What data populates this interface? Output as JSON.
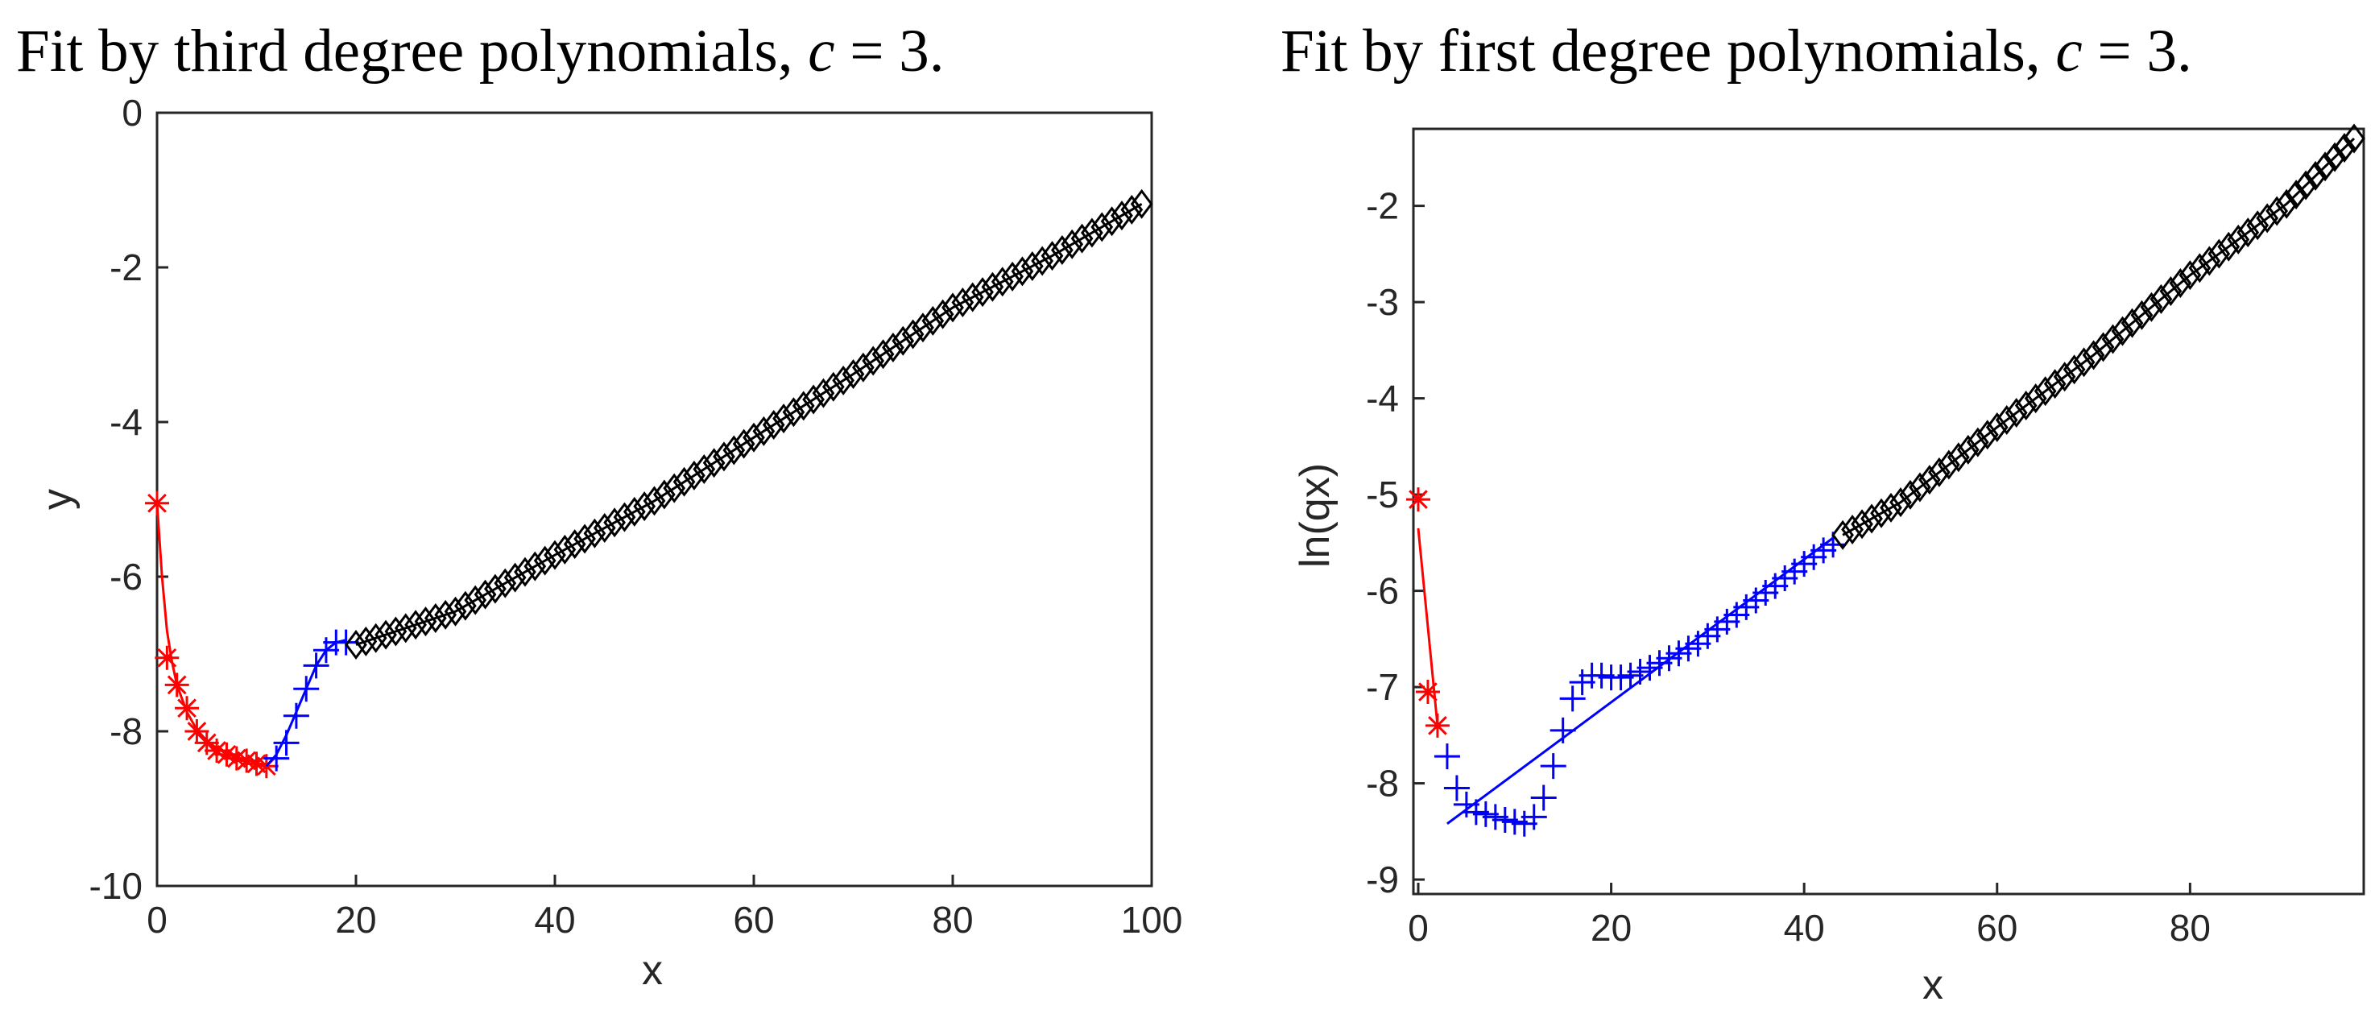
{
  "chart_data": [
    {
      "type": "scatter",
      "title": "Fit by third degree polynomials, c = 3.",
      "title_parts": {
        "prefix": "Fit by third degree polynomials, ",
        "var": "c",
        "suffix": " = 3."
      },
      "xlabel": "x",
      "ylabel": "y",
      "xlim": [
        0,
        100
      ],
      "ylim": [
        -10,
        0
      ],
      "xticks": [
        0,
        20,
        40,
        60,
        80,
        100
      ],
      "yticks": [
        0,
        -2,
        -4,
        -6,
        -8,
        -10
      ],
      "grid": false,
      "series": [
        {
          "marker": "asterisk",
          "color": "#ff0000",
          "points": [
            [
              0,
              -5.05
            ],
            [
              1,
              -7.05
            ],
            [
              2,
              -7.4
            ],
            [
              3,
              -7.7
            ],
            [
              4,
              -8.0
            ],
            [
              5,
              -8.15
            ],
            [
              6,
              -8.25
            ],
            [
              7,
              -8.3
            ],
            [
              8,
              -8.35
            ],
            [
              9,
              -8.38
            ],
            [
              10,
              -8.42
            ],
            [
              11,
              -8.45
            ]
          ],
          "fit": [
            [
              0,
              -5.05
            ],
            [
              0.5,
              -6.0
            ],
            [
              1,
              -6.7
            ],
            [
              1.5,
              -7.1
            ],
            [
              2,
              -7.4
            ],
            [
              3,
              -7.75
            ],
            [
              4,
              -7.98
            ],
            [
              5,
              -8.12
            ],
            [
              6,
              -8.22
            ],
            [
              7,
              -8.29
            ],
            [
              8,
              -8.34
            ],
            [
              9,
              -8.37
            ],
            [
              10,
              -8.41
            ],
            [
              11,
              -8.45
            ]
          ]
        },
        {
          "marker": "plus",
          "color": "#0000ff",
          "points": [
            [
              12,
              -8.35
            ],
            [
              13,
              -8.15
            ],
            [
              14,
              -7.8
            ],
            [
              15,
              -7.45
            ],
            [
              16,
              -7.15
            ],
            [
              17,
              -6.95
            ],
            [
              18,
              -6.85
            ],
            [
              19,
              -6.85
            ]
          ],
          "fit": [
            [
              11,
              -8.45
            ],
            [
              12,
              -8.3
            ],
            [
              13,
              -8.05
            ],
            [
              14,
              -7.75
            ],
            [
              15,
              -7.45
            ],
            [
              16,
              -7.15
            ],
            [
              17,
              -6.95
            ],
            [
              18,
              -6.85
            ],
            [
              19,
              -6.82
            ]
          ]
        },
        {
          "marker": "diamond",
          "color": "#000000",
          "x_range": [
            20,
            99
          ],
          "anchors": [
            [
              20,
              -6.88
            ],
            [
              30,
              -6.45
            ],
            [
              40,
              -5.72
            ],
            [
              50,
              -5.02
            ],
            [
              60,
              -4.2
            ],
            [
              70,
              -3.38
            ],
            [
              80,
              -2.52
            ],
            [
              90,
              -1.85
            ],
            [
              99,
              -1.18
            ]
          ],
          "fit": [
            [
              20,
              -6.88
            ],
            [
              30,
              -6.45
            ],
            [
              40,
              -5.72
            ],
            [
              50,
              -5.02
            ],
            [
              60,
              -4.2
            ],
            [
              70,
              -3.38
            ],
            [
              80,
              -2.52
            ],
            [
              90,
              -1.85
            ],
            [
              99,
              -1.18
            ]
          ]
        }
      ]
    },
    {
      "type": "scatter",
      "title": "Fit by first degree polynomials, c = 3.",
      "title_parts": {
        "prefix": "Fit by first degree polynomials, ",
        "var": "c",
        "suffix": " = 3."
      },
      "xlabel": "x",
      "ylabel": "ln(qx)",
      "xlim": [
        -0.5,
        98
      ],
      "ylim": [
        -9.15,
        -1.2
      ],
      "xticks": [
        0,
        20,
        40,
        60,
        80
      ],
      "yticks": [
        -2,
        -3,
        -4,
        -5,
        -6,
        -7,
        -8,
        -9
      ],
      "grid": false,
      "series": [
        {
          "marker": "asterisk",
          "color": "#ff0000",
          "points": [
            [
              0,
              -5.05
            ],
            [
              1,
              -7.05
            ],
            [
              2,
              -7.4
            ]
          ],
          "fit": [
            [
              0,
              -5.35
            ],
            [
              2,
              -7.4
            ]
          ]
        },
        {
          "marker": "plus",
          "color": "#0000ff",
          "points": [
            [
              3,
              -7.72
            ],
            [
              4,
              -8.05
            ],
            [
              5,
              -8.22
            ],
            [
              6,
              -8.3
            ],
            [
              7,
              -8.32
            ],
            [
              8,
              -8.35
            ],
            [
              9,
              -8.38
            ],
            [
              10,
              -8.4
            ],
            [
              11,
              -8.42
            ],
            [
              12,
              -8.35
            ],
            [
              13,
              -8.15
            ],
            [
              14,
              -7.82
            ],
            [
              15,
              -7.45
            ],
            [
              16,
              -7.12
            ],
            [
              17,
              -6.95
            ],
            [
              18,
              -6.88
            ],
            [
              19,
              -6.88
            ],
            [
              20,
              -6.9
            ],
            [
              21,
              -6.9
            ],
            [
              22,
              -6.88
            ],
            [
              23,
              -6.84
            ],
            [
              24,
              -6.8
            ],
            [
              25,
              -6.75
            ],
            [
              26,
              -6.7
            ],
            [
              27,
              -6.65
            ],
            [
              28,
              -6.6
            ],
            [
              29,
              -6.55
            ],
            [
              30,
              -6.47
            ],
            [
              31,
              -6.4
            ],
            [
              32,
              -6.32
            ],
            [
              33,
              -6.25
            ],
            [
              34,
              -6.17
            ],
            [
              35,
              -6.1
            ],
            [
              36,
              -6.02
            ],
            [
              37,
              -5.95
            ],
            [
              38,
              -5.87
            ],
            [
              39,
              -5.8
            ],
            [
              40,
              -5.72
            ],
            [
              41,
              -5.65
            ],
            [
              42,
              -5.58
            ],
            [
              43,
              -5.52
            ]
          ],
          "fit": [
            [
              3,
              -8.42
            ],
            [
              43,
              -5.45
            ]
          ]
        },
        {
          "marker": "diamond",
          "color": "#000000",
          "x_range": [
            44,
            97
          ],
          "anchors": [
            [
              44,
              -5.42
            ],
            [
              50,
              -5.08
            ],
            [
              60,
              -4.3
            ],
            [
              70,
              -3.55
            ],
            [
              80,
              -2.72
            ],
            [
              90,
              -1.98
            ],
            [
              97,
              -1.3
            ]
          ],
          "fit": [
            [
              44,
              -5.42
            ],
            [
              50,
              -5.08
            ],
            [
              60,
              -4.3
            ],
            [
              70,
              -3.55
            ],
            [
              80,
              -2.72
            ],
            [
              90,
              -1.98
            ],
            [
              97,
              -1.3
            ]
          ]
        }
      ]
    }
  ]
}
